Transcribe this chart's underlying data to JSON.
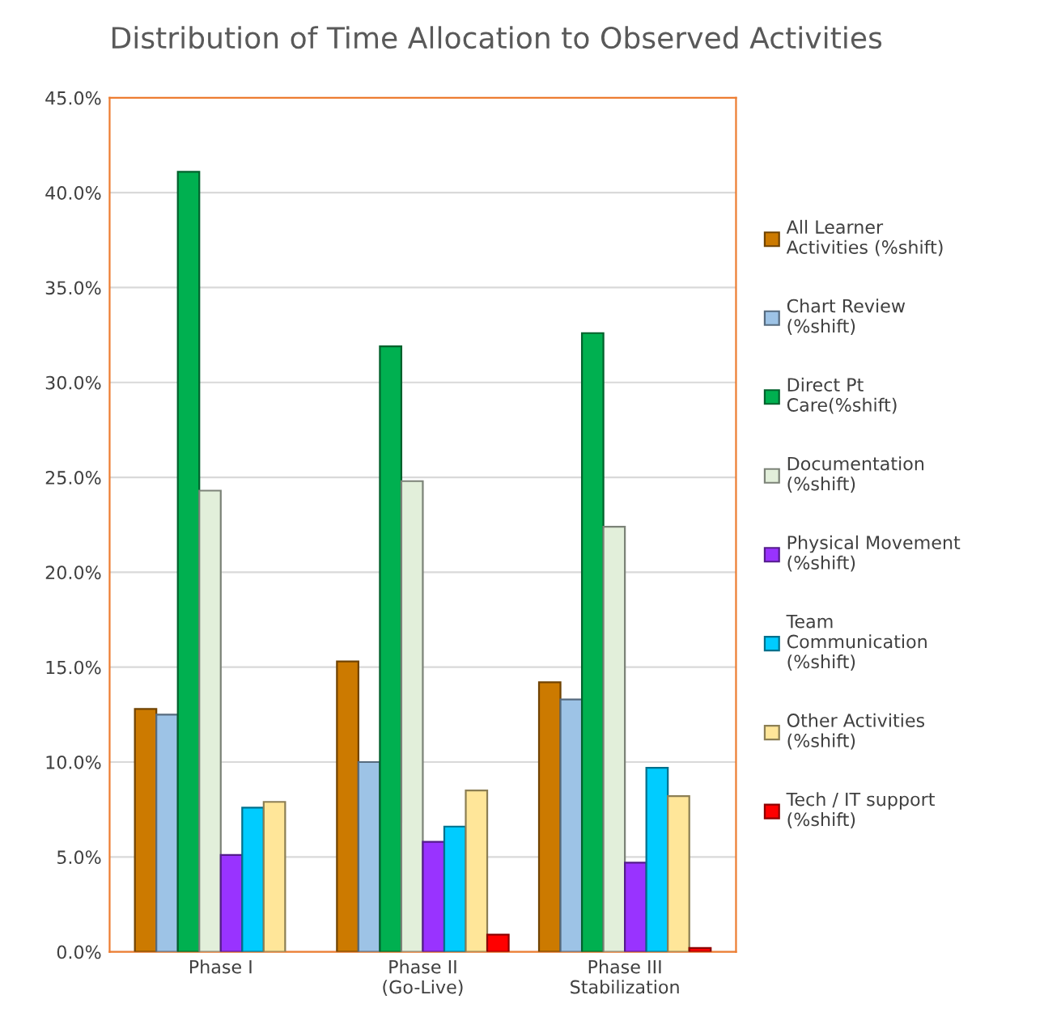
{
  "chart_data": {
    "type": "bar",
    "title": "Distribution of Time Allocation to Observed Activities",
    "categories": [
      "Phase I",
      "Phase II\n(Go-Live)",
      "Phase III\nStabilization"
    ],
    "series": [
      {
        "name": "All Learner\nActivities (%shift)",
        "color": "#cc7a00",
        "values": [
          12.8,
          15.3,
          14.2
        ]
      },
      {
        "name": "Chart Review\n(%shift)",
        "color": "#9dc3e6",
        "values": [
          12.5,
          10.0,
          13.3
        ]
      },
      {
        "name": "Direct Pt\nCare(%shift)",
        "color": "#00b050",
        "values": [
          41.1,
          31.9,
          32.6
        ]
      },
      {
        "name": "Documentation\n(%shift)",
        "color": "#e2efda",
        "values": [
          24.3,
          24.8,
          22.4
        ]
      },
      {
        "name": "Physical Movement\n(%shift)",
        "color": "#9933ff",
        "values": [
          5.1,
          5.8,
          4.7
        ]
      },
      {
        "name": "Team\nCommunication\n(%shift)",
        "color": "#00ccff",
        "values": [
          7.6,
          6.6,
          9.7
        ]
      },
      {
        "name": "Other Activities\n(%shift)",
        "color": "#ffe699",
        "values": [
          7.9,
          8.5,
          8.2
        ]
      },
      {
        "name": "Tech / IT support\n(%shift)",
        "color": "#ff0000",
        "values": [
          null,
          0.9,
          0.2
        ]
      }
    ],
    "ylim": [
      0,
      45
    ],
    "yticks": [
      {
        "value": 0,
        "label": "0.0%"
      },
      {
        "value": 5,
        "label": "5.0%"
      },
      {
        "value": 10,
        "label": "10.0%"
      },
      {
        "value": 15,
        "label": "15.0%"
      },
      {
        "value": 20,
        "label": "20.0%"
      },
      {
        "value": 25,
        "label": "25.0%"
      },
      {
        "value": 30,
        "label": "30.0%"
      },
      {
        "value": 35,
        "label": "35.0%"
      },
      {
        "value": 40,
        "label": "40.0%"
      },
      {
        "value": 45,
        "label": "45.0%"
      }
    ],
    "grid": "y",
    "legend": "right"
  }
}
